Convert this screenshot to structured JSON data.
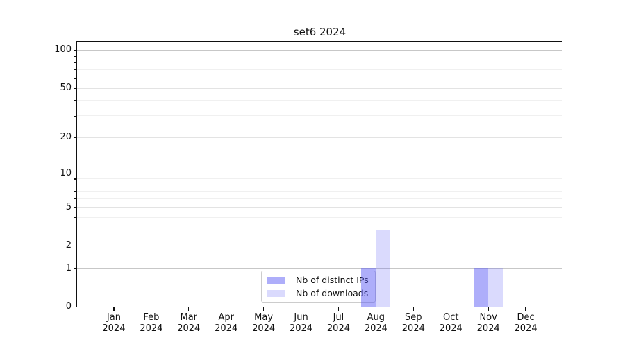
{
  "title": "set6 2024",
  "colors": {
    "bar_distinct_ips": "rgba(85,85,245,0.48)",
    "bar_downloads": "rgba(85,85,245,0.22)",
    "grid_strong": "#c7c7c7",
    "grid_major": "#e3e3e3",
    "grid_minor": "#f0f0f0",
    "axis": "#0f0f0f"
  },
  "chart_data": {
    "type": "bar",
    "title": "set6 2024",
    "categories": [
      "Jan",
      "Feb",
      "Mar",
      "Apr",
      "May",
      "Jun",
      "Jul",
      "Aug",
      "Sep",
      "Oct",
      "Nov",
      "Dec"
    ],
    "x_year_label": "2024",
    "series": [
      {
        "name": "Nb of distinct IPs",
        "color": "rgba(85,85,245,0.48)",
        "values": [
          0,
          0,
          0,
          0,
          0,
          0,
          0,
          1,
          0,
          0,
          1,
          0
        ]
      },
      {
        "name": "Nb of downloads",
        "color": "rgba(85,85,245,0.22)",
        "values": [
          0,
          0,
          0,
          0,
          0,
          0,
          0,
          3,
          0,
          0,
          1,
          0
        ]
      }
    ],
    "y_axis": {
      "scale": "log1p",
      "major_ticks": [
        0,
        1,
        2,
        5,
        10,
        20,
        50,
        100
      ],
      "minor_ticks": [
        3,
        4,
        6,
        7,
        8,
        9,
        30,
        40,
        60,
        70,
        80,
        90
      ],
      "emphasized_gridlines": [
        1,
        10,
        100
      ],
      "top_value": 116,
      "ylim": [
        0,
        116
      ]
    },
    "legend": {
      "position": "bottom-center",
      "entries": [
        "Nb of distinct IPs",
        "Nb of downloads"
      ]
    },
    "grid": "on",
    "bars_present": [
      {
        "month": "Aug 2024",
        "distinct_ips": 1,
        "downloads": 3
      },
      {
        "month": "Nov 2024",
        "distinct_ips": 1,
        "downloads": 1
      }
    ]
  }
}
